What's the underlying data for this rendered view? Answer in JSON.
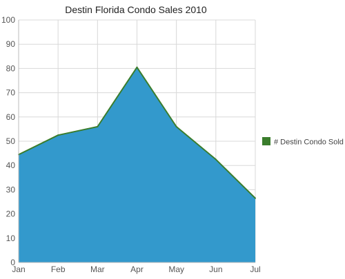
{
  "chart_data": {
    "type": "area",
    "title": "Destin Florida Condo Sales 2010",
    "xlabel": "",
    "ylabel": "",
    "categories": [
      "Jan",
      "Feb",
      "Mar",
      "Apr",
      "May",
      "Jun",
      "Jul"
    ],
    "series": [
      {
        "name": "# Destin Condo Sold",
        "values": [
          44.5,
          52.5,
          56,
          80.5,
          56,
          42.5,
          26.5
        ],
        "fill_color": "#3399cc",
        "line_color": "#3a7d2c",
        "legend_color": "#3a7d2c"
      }
    ],
    "ylim": [
      0,
      100
    ],
    "yticks": [
      0,
      10,
      20,
      30,
      40,
      50,
      60,
      70,
      80,
      90,
      100
    ],
    "grid": true,
    "legend_position": "right"
  }
}
